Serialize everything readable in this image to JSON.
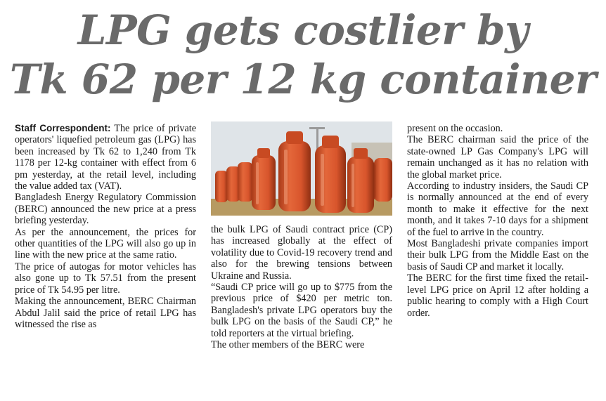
{
  "headline": {
    "line1": "LPG gets costlier by",
    "line2": "Tk 62 per 12 kg container"
  },
  "article": {
    "byline": "Staff Correspondent:",
    "col1": [
      " The price of private operators' liquefied petroleum gas (LPG) has been increased by Tk 62 to 1,240 from Tk 1178 per 12-kg container with effect from 6 pm yesterday, at the retail level, including the value added tax (VAT).",
      "Bangladesh Energy Regulatory Commission (BERC) announced the new price at a press briefing yesterday.",
      "As per the announcement, the prices for other quantities of the LPG will also go up in line with the new price at the same ratio.",
      "The price of autogas for motor vehicles has also gone up to Tk 57.51 from the present price of Tk 54.95 per litre.",
      "Making the announcement, BERC Chairman Abdul Jalil said the price of retail LPG has witnessed the rise as"
    ],
    "col2": [
      "the bulk LPG of Saudi contract price (CP) has increased globally at the effect of volatility due to Covid-19 recovery trend and also for the brewing tensions between Ukraine and Russia.",
      "“Saudi CP price will go up to $775 from the previous price of $420 per metric ton. Bangladesh's private LPG operators buy the bulk LPG on the basis of the Saudi CP,” he told reporters at the virtual briefing.",
      "The other members of the BERC were"
    ],
    "col3": [
      "present on the occasion.",
      "The BERC chairman said the price of the state-owned LP Gas Company's LPG will remain unchanged as it has no relation with the global market price.",
      "According to industry insiders, the Saudi CP is normally announced at the end of every month to make it effective for the next month, and it takes 7-10 days for a shipment of the fuel to arrive in the country.",
      "Most Bangladeshi private companies import their bulk LPG from the Middle East on the basis of Saudi CP and market it locally.",
      "The BERC for the first time fixed the retail-level LPG price on April 12 after holding a public hearing to comply with a High Court order."
    ]
  },
  "photo": {
    "icon": "lpg-cylinders-photo",
    "colors": {
      "cylinder": "#d8552c",
      "cylinder_shade": "#a83a18",
      "sky": "#d7dde3"
    }
  }
}
